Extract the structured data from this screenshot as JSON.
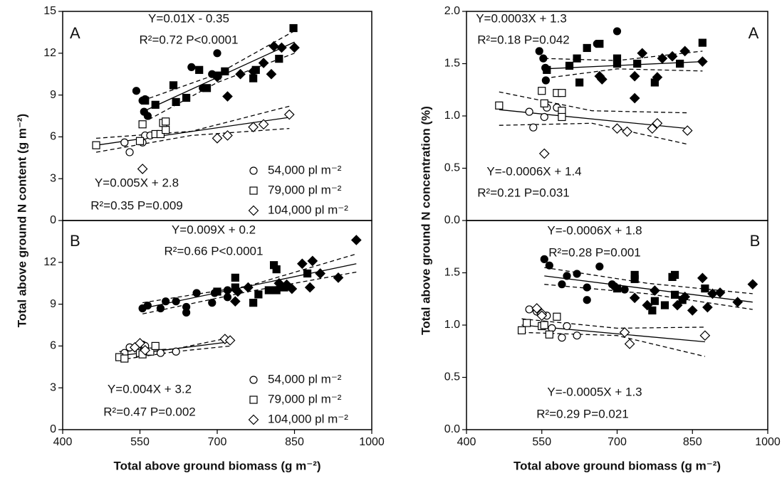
{
  "chart_data": [
    {
      "type": "scatter",
      "ylabel": "Total above ground N content (g m⁻²)",
      "panel": "A",
      "xlim": [
        400,
        1000
      ],
      "ylim": [
        0,
        15
      ],
      "yticks": [
        0,
        3,
        6,
        9,
        12,
        15
      ],
      "annotations": [
        "Y=0.01X - 0.35",
        "R²=0.72 P<0.0001",
        "Y=0.005X + 2.8",
        "R²=0.35 P=0.009"
      ],
      "series": [
        {
          "marker": "circle",
          "filled": true,
          "color": "#000000",
          "x": [
            543,
            555,
            558,
            560,
            565,
            650,
            700,
            690,
            672
          ],
          "values": [
            9.3,
            8.6,
            7.8,
            8.7,
            7.5,
            11,
            12,
            10.5,
            9.5
          ]
        },
        {
          "marker": "square",
          "filled": true,
          "color": "#000000",
          "x": [
            560,
            580,
            615,
            620,
            640,
            665,
            680,
            700,
            715,
            770,
            775,
            820,
            848
          ],
          "values": [
            8.6,
            8.3,
            9.7,
            8.5,
            8.8,
            10.8,
            9.5,
            10.4,
            10.7,
            10.2,
            10.8,
            11.6,
            13.8
          ]
        },
        {
          "marker": "diamond",
          "filled": true,
          "color": "#000000",
          "x": [
            700,
            720,
            745,
            770,
            790,
            805,
            810,
            825,
            850
          ],
          "values": [
            10.3,
            8.9,
            10.5,
            10.7,
            11.3,
            10.5,
            12.5,
            12.4,
            12.4
          ]
        },
        {
          "name": "54,000 pl m⁻²",
          "marker": "circle",
          "filled": false,
          "color": "#000000",
          "x": [
            520,
            530,
            555,
            560,
            570
          ],
          "values": [
            5.6,
            4.9,
            5.6,
            6.1,
            6.1
          ]
        },
        {
          "name": "79,000 pl m⁻²",
          "marker": "square",
          "filled": false,
          "color": "#000000",
          "x": [
            465,
            550,
            555,
            580,
            590,
            600,
            595,
            600
          ],
          "values": [
            5.4,
            5.7,
            6.9,
            6.2,
            6.2,
            6.5,
            7,
            7.1
          ]
        },
        {
          "name": "104,000 pl m⁻²",
          "marker": "diamond",
          "filled": false,
          "color": "#000000",
          "x": [
            555,
            700,
            720,
            770,
            790,
            840
          ],
          "values": [
            3.7,
            5.9,
            6.1,
            6.7,
            6.9,
            7.6
          ]
        }
      ],
      "lines": [
        {
          "style": "solid",
          "x": [
            555,
            850
          ],
          "values": [
            7.8,
            12.8
          ]
        },
        {
          "style": "dashed",
          "x": [
            555,
            700,
            850
          ],
          "values": [
            8.6,
            10.5,
            13.6
          ]
        },
        {
          "style": "dashed",
          "x": [
            555,
            700,
            850
          ],
          "values": [
            7.0,
            9.9,
            12.0
          ]
        },
        {
          "style": "solid",
          "x": [
            465,
            840
          ],
          "values": [
            5.4,
            7.4
          ]
        },
        {
          "style": "dashed",
          "x": [
            465,
            650,
            840
          ],
          "values": [
            5.9,
            6.4,
            8.2
          ]
        },
        {
          "style": "dashed",
          "x": [
            465,
            650,
            840
          ],
          "values": [
            4.9,
            6.1,
            6.6
          ]
        }
      ]
    },
    {
      "type": "scatter",
      "xlabel": "Total above ground biomass (g m⁻²)",
      "panel": "B",
      "xlim": [
        400,
        1000
      ],
      "xticks": [
        400,
        550,
        700,
        850,
        1000
      ],
      "ylim": [
        0,
        15
      ],
      "yticks": [
        0,
        3,
        6,
        9,
        12
      ],
      "annotations": [
        "Y=0.009X + 0.2",
        "R²=0.66 P<0.0001",
        "Y=0.004X + 3.2",
        "R²=0.47 P=0.002"
      ],
      "series": [
        {
          "marker": "circle",
          "filled": true,
          "color": "#000000",
          "x": [
            555,
            565,
            590,
            600,
            620,
            640,
            640,
            660,
            690,
            695,
            720,
            720
          ],
          "values": [
            8.7,
            8.9,
            8.7,
            9.2,
            9.2,
            8.4,
            8.8,
            9.8,
            9.1,
            9.8,
            10,
            9.5
          ]
        },
        {
          "marker": "square",
          "filled": true,
          "color": "#000000",
          "x": [
            700,
            735,
            735,
            770,
            780,
            800,
            810,
            815,
            815,
            830,
            875
          ],
          "values": [
            9.9,
            10.9,
            10.2,
            9.1,
            9.7,
            10,
            11.8,
            11.5,
            10,
            10.2,
            11.2
          ]
        },
        {
          "marker": "diamond",
          "filled": true,
          "color": "#000000",
          "x": [
            735,
            740,
            760,
            820,
            835,
            845,
            865,
            880,
            885,
            900,
            935,
            970
          ],
          "values": [
            9.2,
            9.9,
            10.2,
            10.5,
            10.4,
            10.1,
            11.9,
            10.2,
            12.1,
            11.2,
            10.9,
            13.6
          ]
        },
        {
          "name": "54,000 pl m⁻²",
          "marker": "circle",
          "filled": false,
          "color": "#000000",
          "x": [
            520,
            530,
            545,
            555,
            560,
            590,
            620
          ],
          "values": [
            5.5,
            5.9,
            5.9,
            6.1,
            6.0,
            5.5,
            5.6
          ]
        },
        {
          "name": "79,000 pl m⁻²",
          "marker": "square",
          "filled": false,
          "color": "#000000",
          "x": [
            510,
            520,
            550,
            555,
            570,
            580
          ],
          "values": [
            5.2,
            5.1,
            5.5,
            5.4,
            5.6,
            6.0
          ]
        },
        {
          "name": "104,000 pl m⁻²",
          "marker": "diamond",
          "filled": false,
          "color": "#000000",
          "x": [
            540,
            550,
            560,
            715,
            725
          ],
          "values": [
            5.9,
            6.2,
            5.7,
            6.5,
            6.4
          ]
        }
      ],
      "lines": [
        {
          "style": "solid",
          "x": [
            555,
            970
          ],
          "values": [
            8.7,
            11.9
          ]
        },
        {
          "style": "dashed",
          "x": [
            555,
            760,
            970
          ],
          "values": [
            9.1,
            10.3,
            12.6
          ]
        },
        {
          "style": "dashed",
          "x": [
            555,
            760,
            970
          ],
          "values": [
            8.3,
            9.9,
            11.3
          ]
        },
        {
          "style": "solid",
          "x": [
            510,
            725
          ],
          "values": [
            5.3,
            6.3
          ]
        },
        {
          "style": "dashed",
          "x": [
            510,
            620,
            725
          ],
          "values": [
            5.6,
            5.8,
            6.6
          ]
        },
        {
          "style": "dashed",
          "x": [
            510,
            620,
            725
          ],
          "values": [
            5.0,
            5.6,
            6.0
          ]
        }
      ]
    },
    {
      "type": "scatter",
      "ylabel": "Total above ground N concentration (%)",
      "panel": "A",
      "xlim": [
        400,
        1000
      ],
      "ylim": [
        0,
        2
      ],
      "yticks": [
        {
          "value": 0,
          "label": "0.0"
        },
        0.5,
        {
          "value": 1,
          "label": "1.0"
        },
        1.5,
        {
          "value": 2,
          "label": "2.0"
        }
      ],
      "annotations": [
        "Y=0.0003X + 1.3",
        "R²=0.18 P=0.042",
        "Y=-0.0006X + 1.4",
        "R²=0.21 P=0.031"
      ],
      "series": [
        {
          "marker": "circle",
          "filled": true,
          "color": "#000000",
          "x": [
            545,
            553,
            557,
            558,
            660,
            700
          ],
          "values": [
            1.62,
            1.55,
            1.46,
            1.34,
            1.69,
            1.81
          ]
        },
        {
          "marker": "square",
          "filled": true,
          "color": "#000000",
          "x": [
            560,
            605,
            620,
            625,
            640,
            665,
            700,
            700,
            740,
            775,
            825,
            870
          ],
          "values": [
            1.44,
            1.48,
            1.55,
            1.32,
            1.65,
            1.69,
            1.55,
            1.5,
            1.5,
            1.32,
            1.5,
            1.7
          ]
        },
        {
          "marker": "diamond",
          "filled": true,
          "color": "#000000",
          "x": [
            665,
            670,
            735,
            735,
            750,
            780,
            790,
            810,
            835,
            870
          ],
          "values": [
            1.38,
            1.35,
            1.38,
            1.17,
            1.6,
            1.37,
            1.55,
            1.57,
            1.62,
            1.52
          ]
        },
        {
          "marker": "circle",
          "filled": false,
          "color": "#000000",
          "x": [
            525,
            533,
            555,
            560,
            580
          ],
          "values": [
            1.04,
            0.89,
            0.99,
            1.08,
            1.08
          ]
        },
        {
          "marker": "square",
          "filled": false,
          "color": "#000000",
          "x": [
            465,
            550,
            555,
            580,
            590,
            590,
            590
          ],
          "values": [
            1.1,
            1.24,
            1.12,
            1.22,
            1.22,
            1.05,
            0.99
          ]
        },
        {
          "marker": "diamond",
          "filled": false,
          "color": "#000000",
          "x": [
            555,
            700,
            720,
            770,
            780,
            840
          ],
          "values": [
            0.64,
            0.88,
            0.85,
            0.88,
            0.93,
            0.86
          ]
        }
      ],
      "lines": [
        {
          "style": "solid",
          "x": [
            555,
            870
          ],
          "values": [
            1.45,
            1.52
          ]
        },
        {
          "style": "dashed",
          "x": [
            555,
            700,
            870
          ],
          "values": [
            1.55,
            1.53,
            1.62
          ]
        },
        {
          "style": "dashed",
          "x": [
            555,
            700,
            870
          ],
          "values": [
            1.36,
            1.45,
            1.43
          ]
        },
        {
          "style": "solid",
          "x": [
            465,
            840
          ],
          "values": [
            1.06,
            0.88
          ]
        },
        {
          "style": "dashed",
          "x": [
            465,
            650,
            840
          ],
          "values": [
            1.23,
            1.05,
            1.03
          ]
        },
        {
          "style": "dashed",
          "x": [
            465,
            650,
            840
          ],
          "values": [
            0.91,
            0.93,
            0.73
          ]
        }
      ]
    },
    {
      "type": "scatter",
      "xlabel": "Total above ground biomass (g m⁻²)",
      "panel": "B",
      "xlim": [
        400,
        1000
      ],
      "xticks": [
        400,
        550,
        700,
        850,
        1000
      ],
      "ylim": [
        0,
        2
      ],
      "yticks": [
        {
          "value": 0,
          "label": "0.0"
        },
        0.5,
        {
          "value": 1,
          "label": "1.0"
        },
        1.5
      ],
      "annotations": [
        "Y=-0.0006X + 1.8",
        "R²=0.28 P=0.001",
        "Y=-0.0005X + 1.3",
        "R²=0.29 P=0.021"
      ],
      "series": [
        {
          "marker": "circle",
          "filled": true,
          "color": "#000000",
          "x": [
            555,
            565,
            590,
            600,
            620,
            640,
            640,
            665,
            690,
            695,
            715
          ],
          "values": [
            1.63,
            1.57,
            1.39,
            1.47,
            1.49,
            1.24,
            1.36,
            1.56,
            1.39,
            1.37,
            1.34
          ]
        },
        {
          "marker": "square",
          "filled": true,
          "color": "#000000",
          "x": [
            700,
            735,
            735,
            770,
            775,
            795,
            810,
            815,
            815,
            830,
            875
          ],
          "values": [
            1.35,
            1.48,
            1.44,
            1.14,
            1.23,
            1.19,
            1.46,
            1.29,
            1.48,
            1.24,
            1.35
          ]
        },
        {
          "marker": "diamond",
          "filled": true,
          "color": "#000000",
          "x": [
            735,
            760,
            775,
            820,
            835,
            850,
            870,
            880,
            890,
            905,
            940,
            970
          ],
          "values": [
            1.26,
            1.19,
            1.33,
            1.19,
            1.27,
            1.14,
            1.45,
            1.17,
            1.3,
            1.31,
            1.22,
            1.39
          ]
        },
        {
          "marker": "circle",
          "filled": false,
          "color": "#000000",
          "x": [
            525,
            540,
            560,
            570,
            590,
            600,
            620
          ],
          "values": [
            1.15,
            1.13,
            1.09,
            0.97,
            0.88,
            0.99,
            0.9
          ]
        },
        {
          "marker": "square",
          "filled": false,
          "color": "#000000",
          "x": [
            510,
            520,
            550,
            555,
            565,
            580
          ],
          "values": [
            0.95,
            1.02,
            0.99,
            1.0,
            0.91,
            1.08
          ]
        },
        {
          "marker": "diamond",
          "filled": false,
          "color": "#000000",
          "x": [
            540,
            550,
            550,
            715,
            725,
            875
          ],
          "values": [
            1.16,
            1.11,
            1.09,
            0.93,
            0.82,
            0.9
          ]
        }
      ],
      "lines": [
        {
          "style": "solid",
          "x": [
            555,
            970
          ],
          "values": [
            1.47,
            1.22
          ]
        },
        {
          "style": "dashed",
          "x": [
            555,
            760,
            970
          ],
          "values": [
            1.55,
            1.4,
            1.3
          ]
        },
        {
          "style": "dashed",
          "x": [
            555,
            760,
            970
          ],
          "values": [
            1.39,
            1.3,
            1.15
          ]
        },
        {
          "style": "solid",
          "x": [
            510,
            875
          ],
          "values": [
            1.0,
            0.84
          ]
        },
        {
          "style": "dashed",
          "x": [
            510,
            700,
            875
          ],
          "values": [
            1.06,
            0.97,
            0.98
          ]
        },
        {
          "style": "dashed",
          "x": [
            510,
            700,
            875
          ],
          "values": [
            0.93,
            0.9,
            0.7
          ]
        }
      ]
    }
  ]
}
